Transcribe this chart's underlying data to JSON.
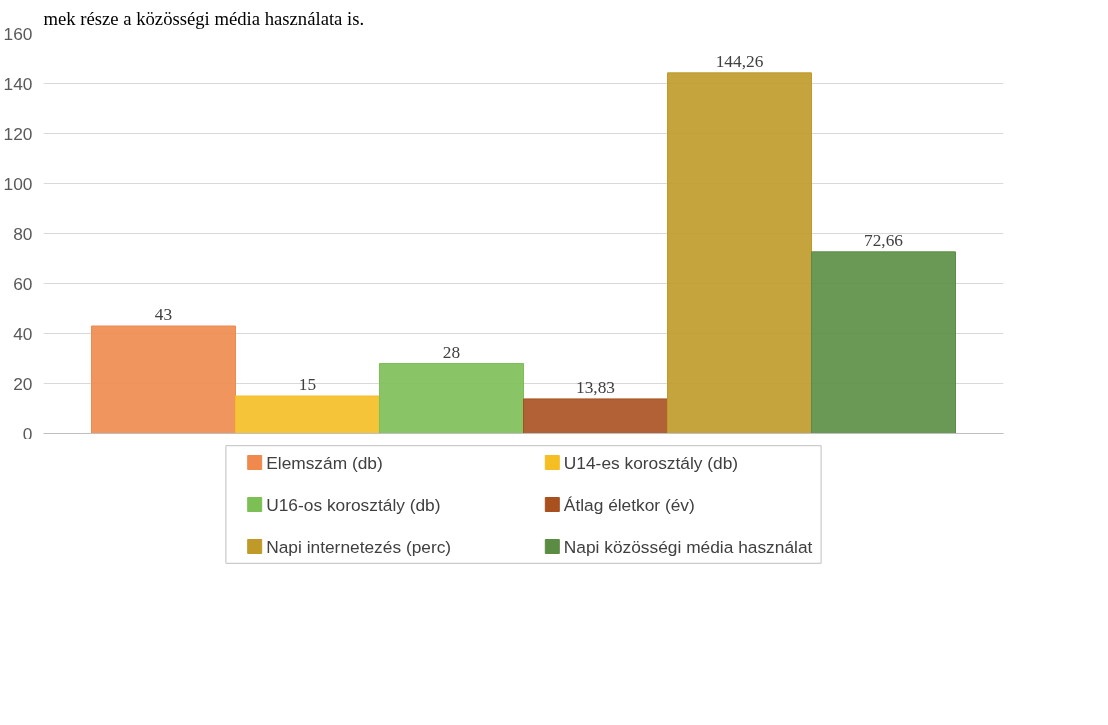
{
  "chart_data": {
    "type": "bar",
    "annotations": [
      "mek része a közösségi média használata is."
    ],
    "categories": [
      null
    ],
    "series": [
      {
        "name": "Elemszám (db)",
        "color": "#f0894e",
        "values": [
          43
        ]
      },
      {
        "name": "U14-es korosztály (db)",
        "color": "#f5be22",
        "values": [
          15
        ]
      },
      {
        "name": "U16-os korosztály (db)",
        "color": "#7cbf55",
        "values": [
          28
        ]
      },
      {
        "name": "Átlag életkor (év)",
        "color": "#a9501f",
        "values": [
          13.83
        ],
        "value_labels": [
          "13,83"
        ]
      },
      {
        "name": "Napi internetezés (perc)",
        "color": "#bf9a28",
        "values": [
          144.26
        ],
        "value_labels": [
          "144,26"
        ]
      },
      {
        "name": "Napi közösségi média használat",
        "color": "#5a8d43",
        "values": [
          72.66
        ],
        "value_labels": [
          "72,66"
        ]
      }
    ],
    "data_labels": true,
    "ylim": [
      0,
      160
    ],
    "yticks": [
      0,
      20,
      40,
      60,
      80,
      100,
      120,
      140,
      160
    ],
    "grid": "y",
    "legend": "bottom",
    "tick_labels": "y"
  }
}
